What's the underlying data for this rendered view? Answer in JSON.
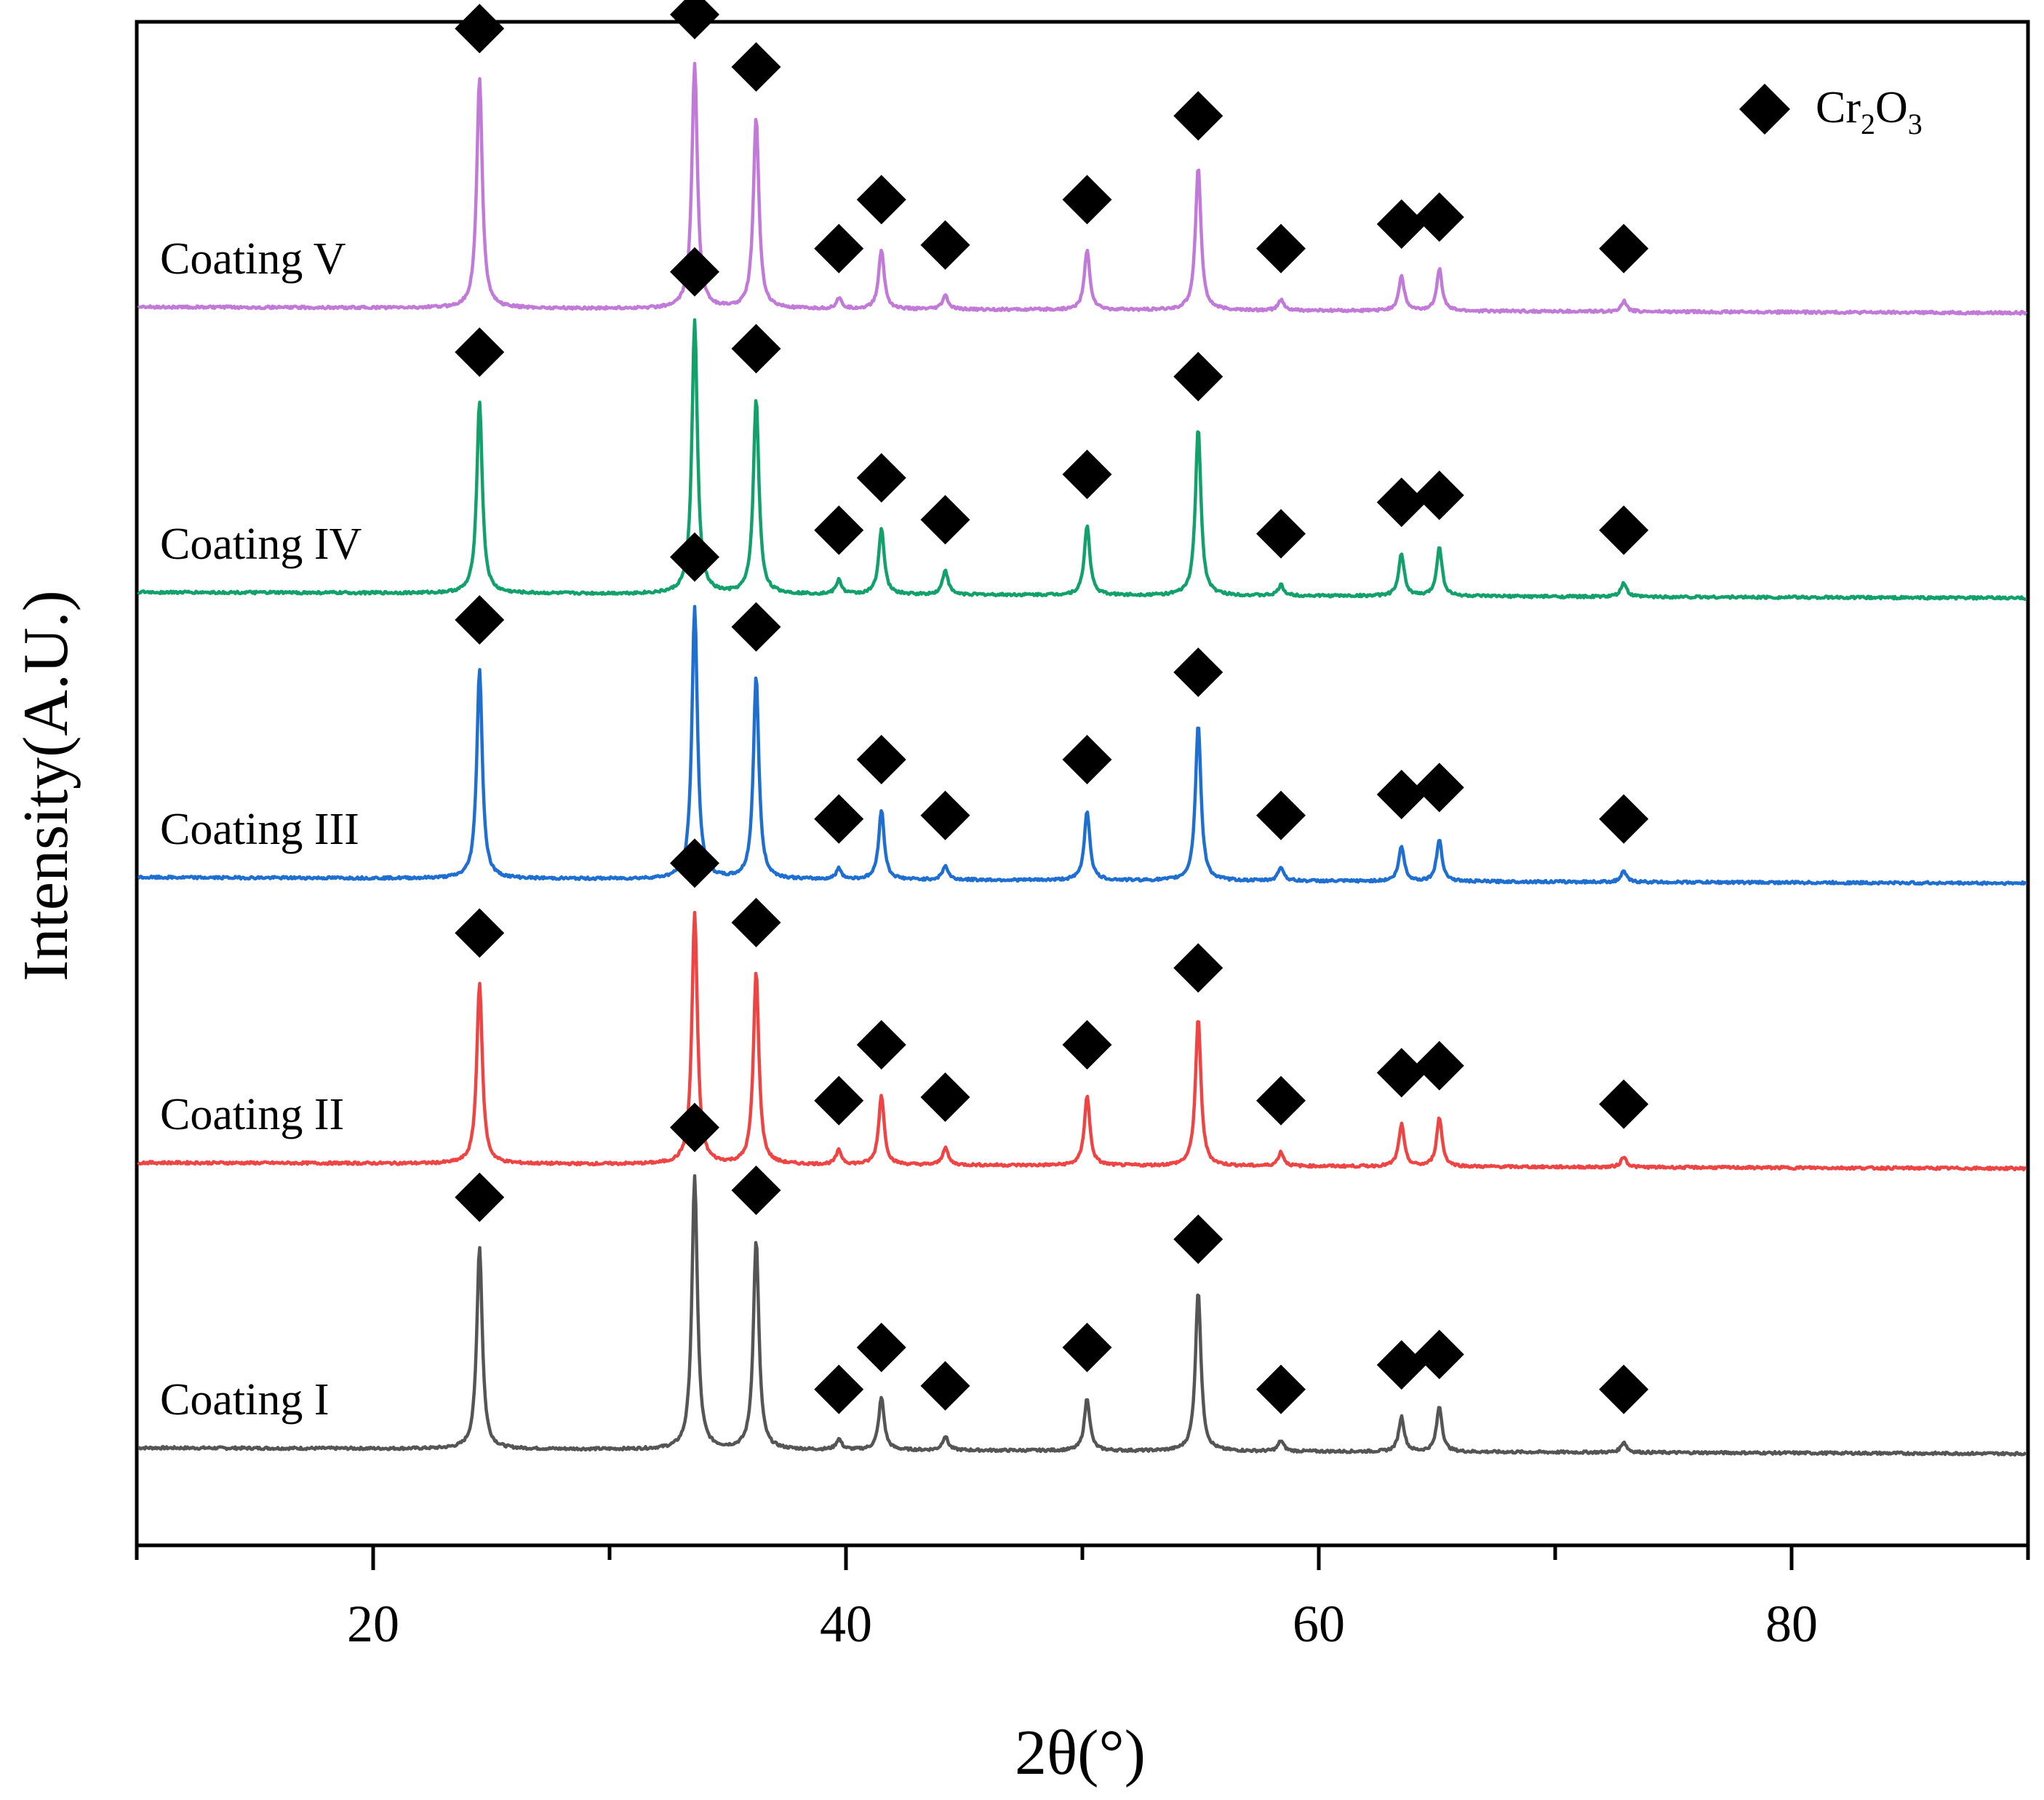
{
  "chart_data": {
    "type": "line",
    "title": "",
    "xlabel": "2θ(°)",
    "ylabel": "Intensity(A.U.)",
    "xlim": [
      10,
      90
    ],
    "xticks": [
      20,
      40,
      60,
      80
    ],
    "xtick_labels": [
      "20",
      "40",
      "60",
      "80"
    ],
    "grid": false,
    "legend": {
      "position": "top-right",
      "marker": "diamond",
      "phase": "Cr2O3",
      "label_main": "Cr",
      "label_sub1": "2",
      "label_mid": "O",
      "label_sub2": "3"
    },
    "peak_positions": [
      24.5,
      33.6,
      36.2,
      39.7,
      41.5,
      44.2,
      50.2,
      54.9,
      58.4,
      63.5,
      65.1,
      72.9
    ],
    "series": [
      {
        "name": "Coating I",
        "color": "#555555",
        "baseline": 0.0,
        "intensities": [
          0.58,
          0.78,
          0.6,
          0.03,
          0.15,
          0.04,
          0.15,
          0.46,
          0.03,
          0.1,
          0.13,
          0.03
        ]
      },
      {
        "name": "Coating II",
        "color": "#ef4444",
        "baseline": 1.0,
        "intensities": [
          0.52,
          0.72,
          0.55,
          0.04,
          0.2,
          0.05,
          0.2,
          0.42,
          0.04,
          0.12,
          0.14,
          0.03
        ]
      },
      {
        "name": "Coating III",
        "color": "#1f6fd1",
        "baseline": 2.0,
        "intensities": [
          0.6,
          0.78,
          0.58,
          0.03,
          0.2,
          0.04,
          0.2,
          0.45,
          0.04,
          0.1,
          0.12,
          0.03
        ]
      },
      {
        "name": "Coating IV",
        "color": "#12a06b",
        "baseline": 3.0,
        "intensities": [
          0.55,
          0.78,
          0.56,
          0.04,
          0.19,
          0.07,
          0.2,
          0.48,
          0.03,
          0.12,
          0.14,
          0.04
        ]
      },
      {
        "name": "Coating V",
        "color": "#c27ad8",
        "baseline": 4.0,
        "intensities": [
          0.66,
          0.7,
          0.55,
          0.03,
          0.17,
          0.04,
          0.17,
          0.41,
          0.03,
          0.1,
          0.12,
          0.03
        ]
      }
    ]
  }
}
